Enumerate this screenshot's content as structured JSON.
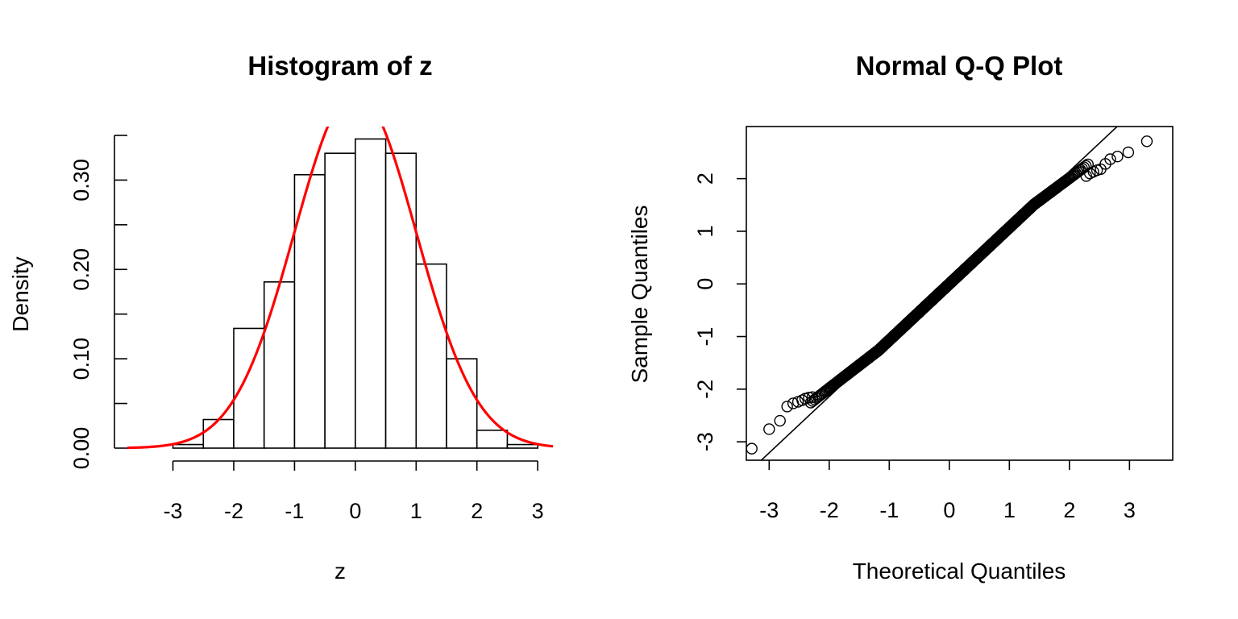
{
  "chart_data": [
    {
      "type": "bar",
      "title": "Histogram of z",
      "xlabel": "z",
      "ylabel": "Density",
      "xlim": [
        -3.75,
        3.25
      ],
      "ylim": [
        0,
        0.35
      ],
      "x_ticks": [
        -3,
        -2,
        -1,
        0,
        1,
        2,
        3
      ],
      "x_tick_labels": [
        "-3",
        "-2",
        "-1",
        "0",
        "1",
        "2",
        "3"
      ],
      "y_ticks": [
        0.0,
        0.05,
        0.1,
        0.15,
        0.2,
        0.25,
        0.3,
        0.35
      ],
      "y_tick_labels": [
        "0.00",
        "",
        "0.10",
        "",
        "0.20",
        "",
        "0.30",
        ""
      ],
      "bins": [
        {
          "x0": -3.5,
          "x1": -3.0,
          "density": 0.0
        },
        {
          "x0": -3.0,
          "x1": -2.5,
          "density": 0.004
        },
        {
          "x0": -2.5,
          "x1": -2.0,
          "density": 0.032
        },
        {
          "x0": -2.0,
          "x1": -1.5,
          "density": 0.134
        },
        {
          "x0": -1.5,
          "x1": -1.0,
          "density": 0.186
        },
        {
          "x0": -1.0,
          "x1": -0.5,
          "density": 0.306
        },
        {
          "x0": -0.5,
          "x1": 0.0,
          "density": 0.33
        },
        {
          "x0": 0.0,
          "x1": 0.5,
          "density": 0.346
        },
        {
          "x0": 0.5,
          "x1": 1.0,
          "density": 0.33
        },
        {
          "x0": 1.0,
          "x1": 1.5,
          "density": 0.206
        },
        {
          "x0": 1.5,
          "x1": 2.0,
          "density": 0.1
        },
        {
          "x0": 2.0,
          "x1": 2.5,
          "density": 0.02
        },
        {
          "x0": 2.5,
          "x1": 3.0,
          "density": 0.004
        }
      ],
      "curve": {
        "type": "normal-density",
        "mean": 0,
        "sd": 1,
        "color": "#ff0000"
      }
    },
    {
      "type": "scatter",
      "title": "Normal Q-Q Plot",
      "xlabel": "Theoretical Quantiles",
      "ylabel": "Sample Quantiles",
      "xlim": [
        -3.38,
        3.72
      ],
      "ylim": [
        -3.35,
        2.99
      ],
      "x_ticks": [
        -3,
        -2,
        -1,
        0,
        1,
        2,
        3
      ],
      "x_tick_labels": [
        "-3",
        "-2",
        "-1",
        "0",
        "1",
        "2",
        "3"
      ],
      "y_ticks": [
        -3,
        -2,
        -1,
        0,
        1,
        2
      ],
      "y_tick_labels": [
        "-3",
        "-2",
        "-1",
        "0",
        "1",
        "2"
      ],
      "reference_line": {
        "intercept": 0,
        "slope": 1.07
      },
      "points": {
        "n": 1000,
        "marker": "open-circle",
        "lower_tail_scale": 0.88,
        "upper_tail_scale": 0.85
      },
      "outliers": [
        [
          -3.29,
          -3.13
        ],
        [
          -3.0,
          -2.76
        ],
        [
          -2.82,
          -2.6
        ],
        [
          -2.7,
          -2.33
        ],
        [
          -2.6,
          -2.27
        ],
        [
          -2.52,
          -2.24
        ],
        [
          -2.45,
          -2.21
        ],
        [
          -2.4,
          -2.18
        ],
        [
          -2.34,
          -2.16
        ],
        [
          -2.28,
          -2.15
        ],
        [
          2.28,
          2.05
        ],
        [
          2.34,
          2.1
        ],
        [
          2.4,
          2.13
        ],
        [
          2.46,
          2.16
        ],
        [
          2.52,
          2.18
        ],
        [
          2.6,
          2.28
        ],
        [
          2.68,
          2.37
        ],
        [
          2.8,
          2.42
        ],
        [
          2.98,
          2.5
        ],
        [
          3.29,
          2.71
        ]
      ]
    }
  ]
}
